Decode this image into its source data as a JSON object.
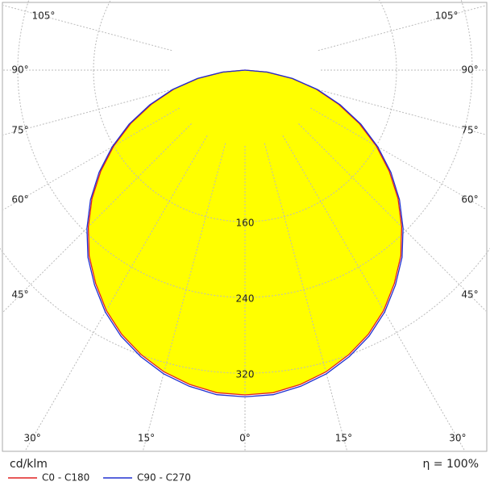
{
  "chart_data": {
    "type": "polar",
    "unit_label": "cd/klm",
    "efficiency_label": "η = 100%",
    "angles": [
      0,
      5,
      10,
      15,
      20,
      25,
      30,
      35,
      40,
      45,
      50,
      55,
      60,
      65,
      70,
      75,
      80,
      85,
      90
    ],
    "series": [
      {
        "name": "C0 - C180",
        "color": "#e02020",
        "values": [
          343,
          342,
          337,
          330,
          320,
          308,
          293,
          275,
          256,
          234,
          211,
          186,
          160,
          133,
          105,
          78,
          50,
          23,
          0
        ]
      },
      {
        "name": "C90 - C270",
        "color": "#2030d0",
        "values": [
          345,
          344,
          339,
          332,
          322,
          310,
          295,
          277,
          258,
          236,
          213,
          188,
          162,
          135,
          107,
          79,
          51,
          24,
          0
        ]
      }
    ],
    "fill_color": "#ffff00",
    "rticks": [
      160,
      240,
      320
    ],
    "angle_ticks": [
      {
        "value": 0,
        "label": "0°"
      },
      {
        "value": 15,
        "label": "15°"
      },
      {
        "value": 30,
        "label": "30°"
      },
      {
        "value": 45,
        "label": "45°"
      },
      {
        "value": 60,
        "label": "60°"
      },
      {
        "value": 75,
        "label": "75°"
      },
      {
        "value": 90,
        "label": "90°"
      },
      {
        "value": 105,
        "label": "105°"
      }
    ],
    "grid": true
  }
}
